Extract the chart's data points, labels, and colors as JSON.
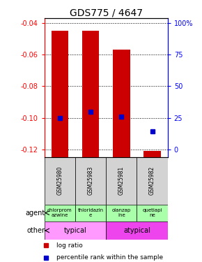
{
  "title": "GDS775 / 4647",
  "samples": [
    "GSM25980",
    "GSM25983",
    "GSM25981",
    "GSM25982"
  ],
  "log_ratios": [
    -0.045,
    -0.045,
    -0.057,
    -0.121
  ],
  "percentile_ranks": [
    25,
    30,
    26,
    14
  ],
  "ylim": [
    -0.125,
    -0.037
  ],
  "yticks_left": [
    -0.04,
    -0.06,
    -0.08,
    -0.1,
    -0.12
  ],
  "yticks_right": [
    100,
    75,
    50,
    25,
    0
  ],
  "agent_labels": [
    "chlorprom\nazwine",
    "thioridazin\ne",
    "olanzap\nine",
    "quetiapi\nne"
  ],
  "bar_color": "#cc0000",
  "blue_color": "#0000cc",
  "bg_color": "#d3d3d3",
  "agent_color": "#aaffaa",
  "other_typical_color": "#ff99ff",
  "other_atypical_color": "#ee44ee",
  "title_fontsize": 10,
  "tick_fontsize": 7,
  "bar_width": 0.55
}
